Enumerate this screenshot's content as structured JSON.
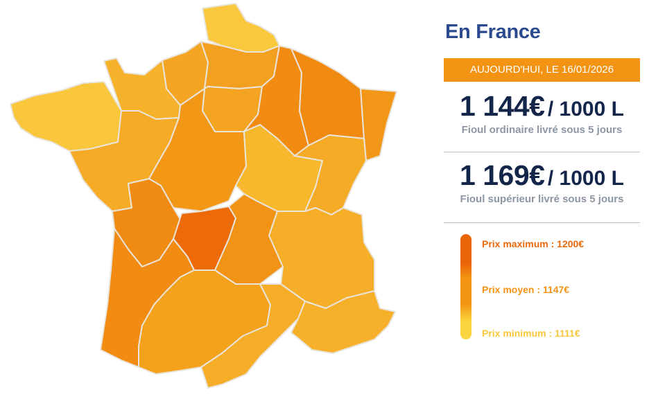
{
  "panel": {
    "title": "En France",
    "date_banner": "AUJOURD'HUI, LE 16/01/2026",
    "prices": [
      {
        "value": "1 144€",
        "unit": "/ 1000 L",
        "description": "Fioul ordinaire livré sous 5 jours"
      },
      {
        "value": "1 169€",
        "unit": "/ 1000 L",
        "description": "Fioul supérieur livré sous 5 jours"
      }
    ],
    "legend": [
      {
        "label": "Prix maximum : 1200€",
        "color": "#e9680a"
      },
      {
        "label": "Prix moyen : 1147€",
        "color": "#f39313"
      },
      {
        "label": "Prix minimum : 1111€",
        "color": "#f7c63b"
      }
    ]
  },
  "colors": {
    "accent": "#f39313",
    "title": "#2b4a8f",
    "price_text": "#14254a",
    "region_border": "#e9e4dc"
  },
  "map": {
    "regions": [
      {
        "id": "nord",
        "color": "#fac83c"
      },
      {
        "id": "normandie-est",
        "color": "#f5a524"
      },
      {
        "id": "picardie",
        "color": "#f3a020"
      },
      {
        "id": "ile-de-france",
        "color": "#f4a421"
      },
      {
        "id": "normandie-ouest",
        "color": "#f7b22c"
      },
      {
        "id": "bretagne",
        "color": "#fac63c"
      },
      {
        "id": "pays-de-la-loire",
        "color": "#f6ab27"
      },
      {
        "id": "centre",
        "color": "#f39816"
      },
      {
        "id": "champagne",
        "color": "#f28b12"
      },
      {
        "id": "lorraine",
        "color": "#f08a10"
      },
      {
        "id": "alsace",
        "color": "#f29617"
      },
      {
        "id": "bourgogne",
        "color": "#f8b82d"
      },
      {
        "id": "franche-comte",
        "color": "#f6ab26"
      },
      {
        "id": "poitou-charentes",
        "color": "#f08c13"
      },
      {
        "id": "limousin",
        "color": "#ec6b08"
      },
      {
        "id": "auvergne",
        "color": "#f39315"
      },
      {
        "id": "rhone-alpes",
        "color": "#f6ae28"
      },
      {
        "id": "aquitaine",
        "color": "#f28b12"
      },
      {
        "id": "midi-pyrenees",
        "color": "#f4a11c"
      },
      {
        "id": "languedoc",
        "color": "#f6ad27"
      },
      {
        "id": "paca",
        "color": "#f7b02a"
      }
    ]
  }
}
